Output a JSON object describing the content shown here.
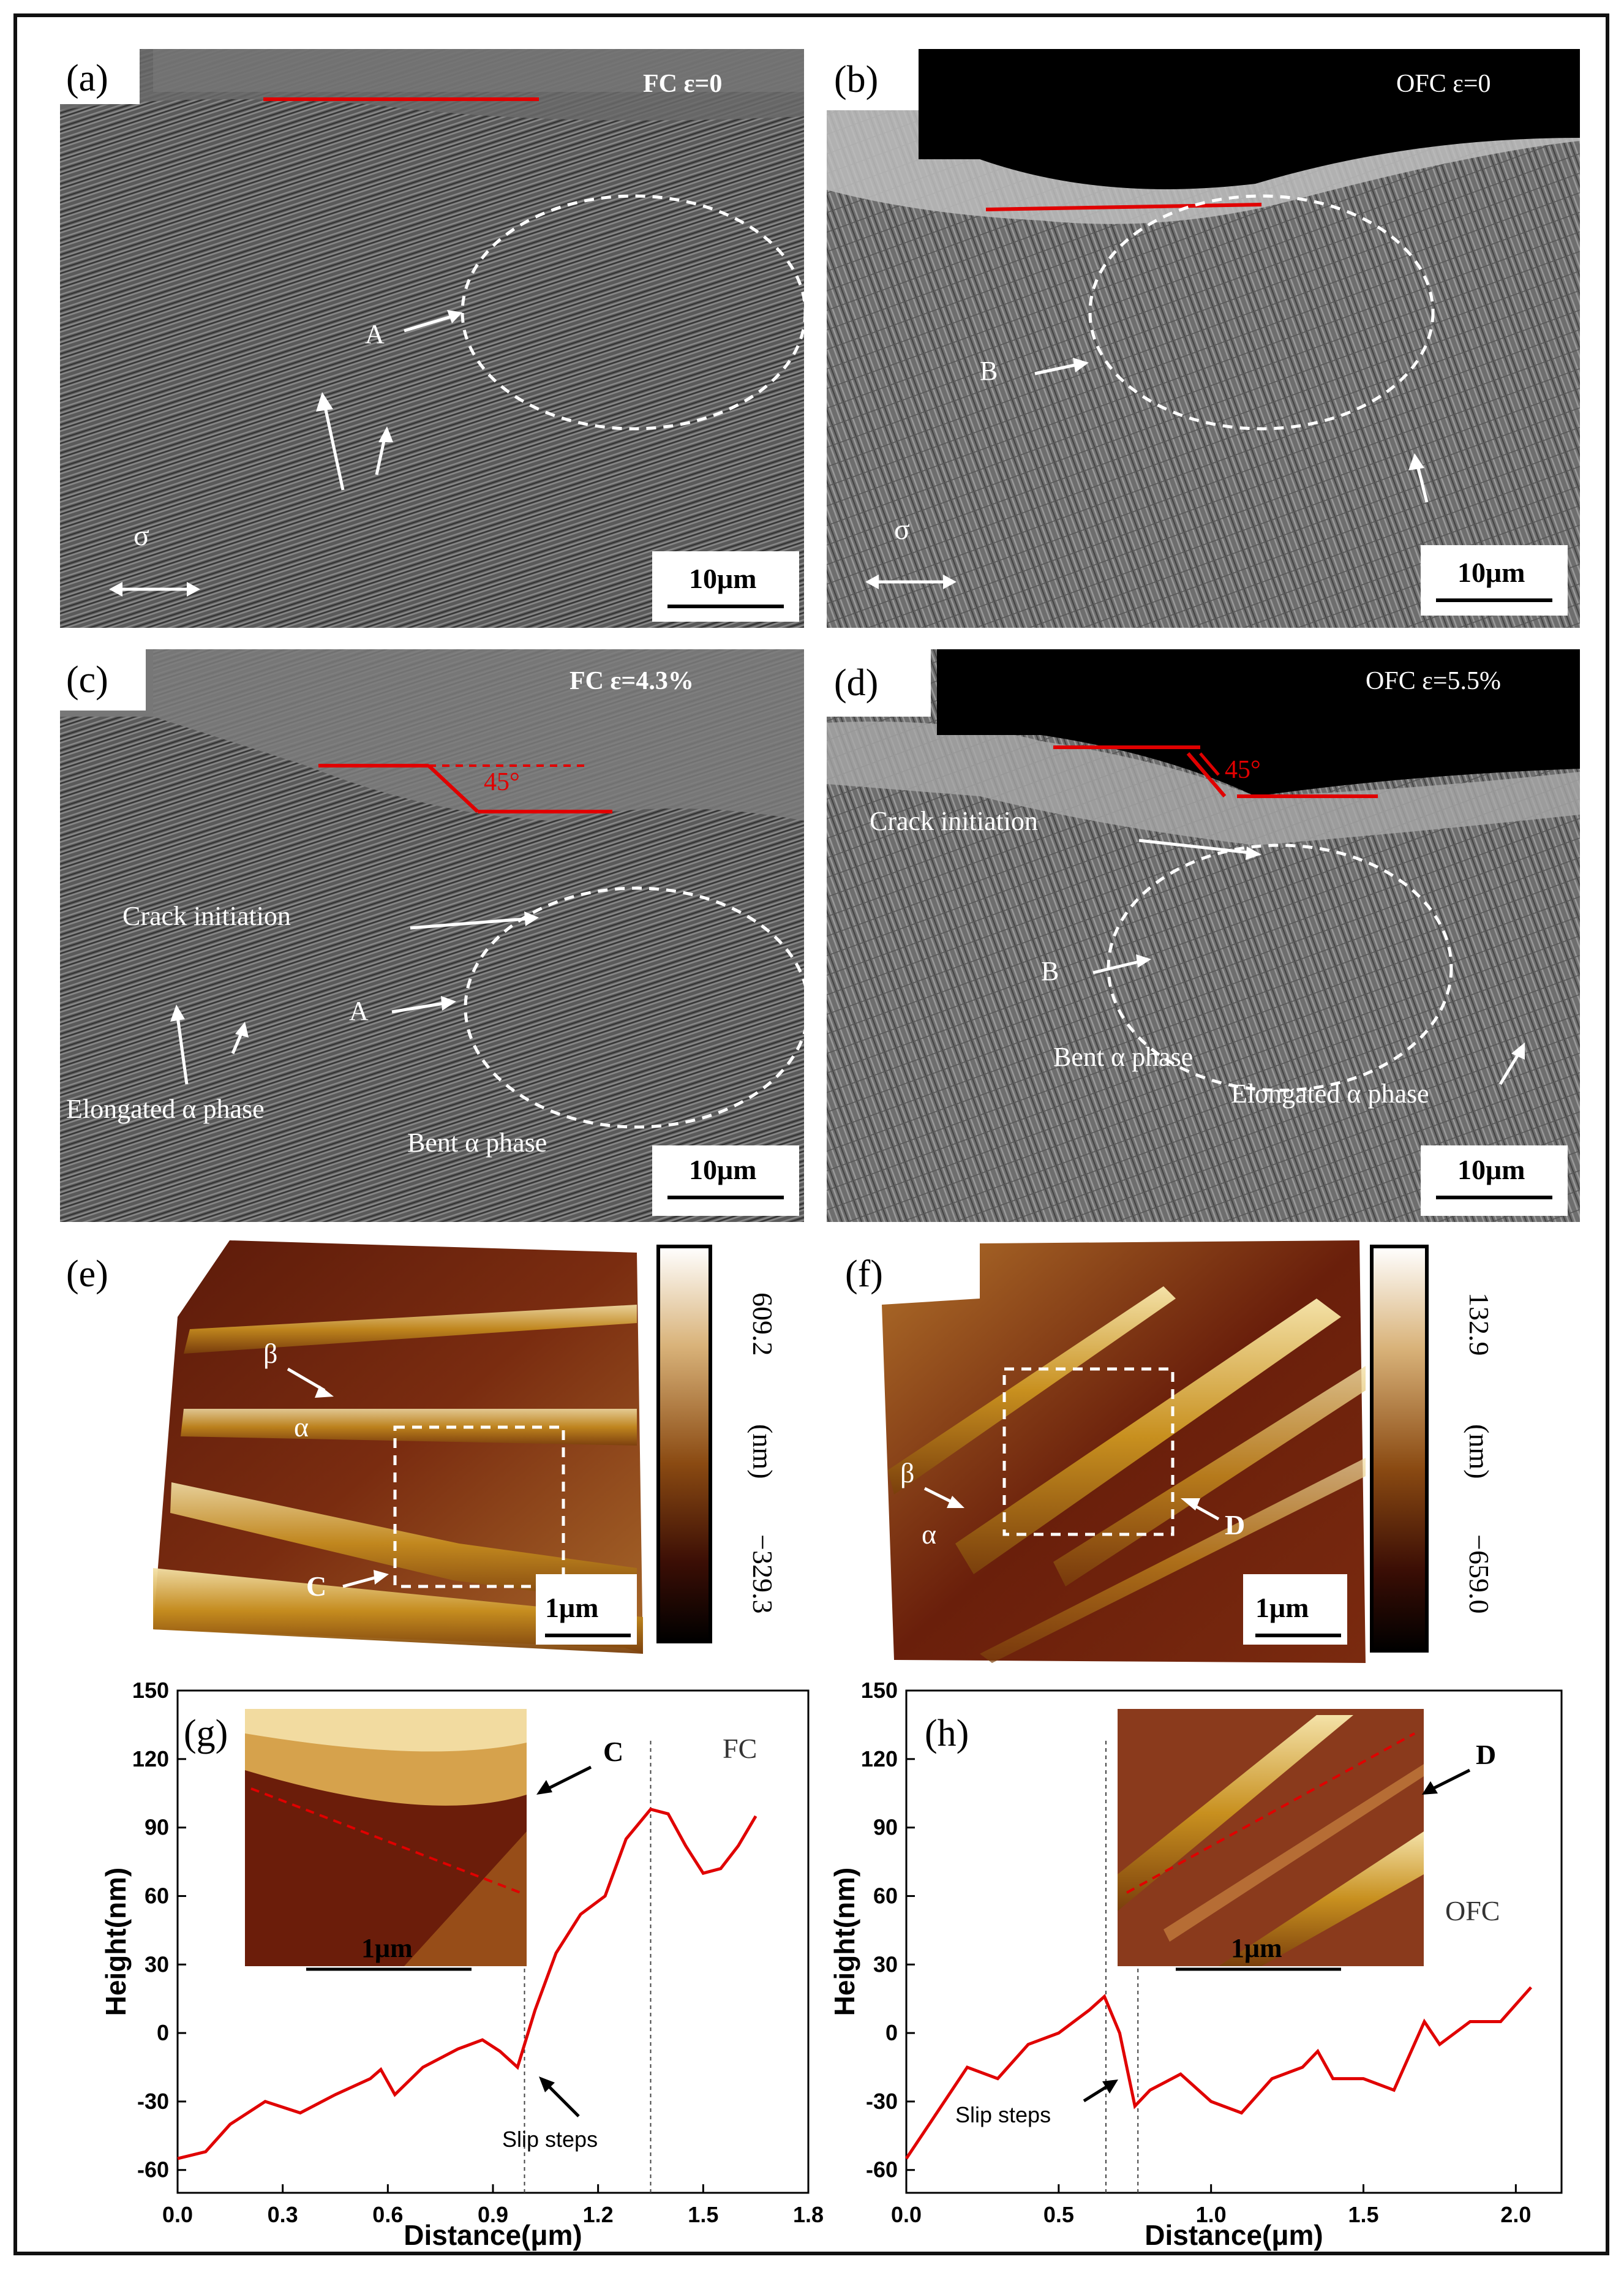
{
  "panels": {
    "a": {
      "label": "(a)",
      "condition": "FC  ε=0",
      "marker": "A",
      "stress": "σ",
      "scale": "10μm"
    },
    "b": {
      "label": "(b)",
      "condition": "OFC  ε=0",
      "marker": "B",
      "stress": "σ",
      "scale": "10μm"
    },
    "c": {
      "label": "(c)",
      "condition": "FC  ε=4.3%",
      "marker": "A",
      "crack": "Crack initiation",
      "elongated": "Elongated α phase",
      "bent": "Bent α phase",
      "angle": "45°",
      "scale": "10μm"
    },
    "d": {
      "label": "(d)",
      "condition": "OFC  ε=5.5%",
      "marker": "B",
      "crack": "Crack initiation",
      "elongated": "Elongated α phase",
      "bent": "Bent α phase",
      "angle": "45°",
      "scale": "10μm"
    },
    "e": {
      "label": "(e)",
      "beta": "β",
      "alpha": "α",
      "marker": "C",
      "scale": "1μm",
      "colorbar": {
        "max": "609.2",
        "min": "−329.3",
        "unit": "(nm)"
      }
    },
    "f": {
      "label": "(f)",
      "beta": "β",
      "alpha": "α",
      "marker": "D",
      "scale": "1μm",
      "colorbar": {
        "max": "132.9",
        "min": "−659.0",
        "unit": "(nm)"
      }
    },
    "g": {
      "label": "(g)",
      "series": "FC",
      "marker": "C",
      "slip": "Slip steps",
      "inset_scale": "1μm"
    },
    "h": {
      "label": "(h)",
      "series": "OFC",
      "marker": "D",
      "slip": "Slip steps",
      "inset_scale": "1μm"
    }
  },
  "chart_data": [
    {
      "type": "line",
      "panel": "g",
      "xlabel": "Distance(μm)",
      "ylabel": "Height(nm)",
      "xlim": [
        0.0,
        1.8
      ],
      "ylim": [
        -70,
        150
      ],
      "xticks": [
        "0.0",
        "0.3",
        "0.6",
        "0.9",
        "1.2",
        "1.5",
        "1.8"
      ],
      "yticks": [
        "-60",
        "-30",
        "0",
        "30",
        "60",
        "90",
        "120",
        "150"
      ],
      "series": [
        {
          "name": "FC",
          "x": [
            0.0,
            0.08,
            0.15,
            0.25,
            0.35,
            0.45,
            0.55,
            0.58,
            0.62,
            0.7,
            0.8,
            0.87,
            0.92,
            0.97,
            1.02,
            1.08,
            1.15,
            1.22,
            1.28,
            1.35,
            1.4,
            1.45,
            1.5,
            1.55,
            1.6,
            1.65
          ],
          "y": [
            -55,
            -52,
            -40,
            -30,
            -35,
            -27,
            -20,
            -16,
            -27,
            -15,
            -7,
            -3,
            -8,
            -15,
            10,
            35,
            52,
            60,
            85,
            98,
            96,
            82,
            70,
            72,
            82,
            95
          ]
        }
      ],
      "vlines": [
        0.99,
        1.35
      ]
    },
    {
      "type": "line",
      "panel": "h",
      "xlabel": "Distance(μm)",
      "ylabel": "Height(nm)",
      "xlim": [
        0.0,
        2.15
      ],
      "ylim": [
        -70,
        150
      ],
      "xticks": [
        "0.0",
        "0.5",
        "1.0",
        "1.5",
        "2.0"
      ],
      "yticks": [
        "-60",
        "-30",
        "0",
        "30",
        "60",
        "90",
        "120",
        "150"
      ],
      "series": [
        {
          "name": "OFC",
          "x": [
            0.0,
            0.1,
            0.2,
            0.3,
            0.4,
            0.5,
            0.6,
            0.65,
            0.7,
            0.75,
            0.8,
            0.9,
            1.0,
            1.1,
            1.2,
            1.3,
            1.35,
            1.4,
            1.5,
            1.6,
            1.7,
            1.75,
            1.85,
            1.95,
            2.05
          ],
          "y": [
            -55,
            -35,
            -15,
            -20,
            -5,
            0,
            10,
            16,
            0,
            -32,
            -25,
            -18,
            -30,
            -35,
            -20,
            -15,
            -8,
            -20,
            -20,
            -25,
            5,
            -5,
            5,
            5,
            20
          ]
        }
      ],
      "vlines": [
        0.655,
        0.76
      ]
    }
  ]
}
